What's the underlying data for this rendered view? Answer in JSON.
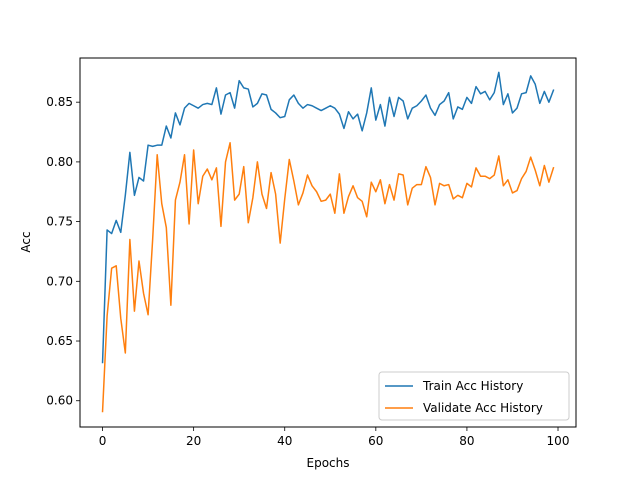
{
  "chart_data": {
    "type": "line",
    "title": "",
    "xlabel": "Epochs",
    "ylabel": "Acc",
    "xlim": [
      -4.95,
      103.95
    ],
    "ylim": [
      0.578,
      0.887
    ],
    "xticks": [
      0,
      20,
      40,
      60,
      80,
      100
    ],
    "yticks": [
      0.6,
      0.65,
      0.7,
      0.75,
      0.8,
      0.85
    ],
    "xtick_labels": [
      "0",
      "20",
      "40",
      "60",
      "80",
      "100"
    ],
    "ytick_labels": [
      "0.60",
      "0.65",
      "0.70",
      "0.75",
      "0.80",
      "0.85"
    ],
    "grid": false,
    "legend_position": "lower-right",
    "x": [
      0,
      1,
      2,
      3,
      4,
      5,
      6,
      7,
      8,
      9,
      10,
      11,
      12,
      13,
      14,
      15,
      16,
      17,
      18,
      19,
      20,
      21,
      22,
      23,
      24,
      25,
      26,
      27,
      28,
      29,
      30,
      31,
      32,
      33,
      34,
      35,
      36,
      37,
      38,
      39,
      40,
      41,
      42,
      43,
      44,
      45,
      46,
      47,
      48,
      49,
      50,
      51,
      52,
      53,
      54,
      55,
      56,
      57,
      58,
      59,
      60,
      61,
      62,
      63,
      64,
      65,
      66,
      67,
      68,
      69,
      70,
      71,
      72,
      73,
      74,
      75,
      76,
      77,
      78,
      79,
      80,
      81,
      82,
      83,
      84,
      85,
      86,
      87,
      88,
      89,
      90,
      91,
      92,
      93,
      94,
      95,
      96,
      97,
      98,
      99
    ],
    "series": [
      {
        "name": "Train Acc History",
        "color": "#1f77b4",
        "values": [
          0.632,
          0.743,
          0.74,
          0.751,
          0.741,
          0.772,
          0.808,
          0.772,
          0.787,
          0.784,
          0.814,
          0.813,
          0.814,
          0.814,
          0.83,
          0.82,
          0.841,
          0.831,
          0.845,
          0.849,
          0.847,
          0.845,
          0.848,
          0.849,
          0.848,
          0.862,
          0.84,
          0.856,
          0.858,
          0.845,
          0.868,
          0.862,
          0.861,
          0.846,
          0.849,
          0.857,
          0.856,
          0.844,
          0.841,
          0.837,
          0.838,
          0.852,
          0.856,
          0.849,
          0.845,
          0.848,
          0.847,
          0.845,
          0.843,
          0.845,
          0.847,
          0.845,
          0.84,
          0.828,
          0.842,
          0.836,
          0.84,
          0.826,
          0.841,
          0.862,
          0.835,
          0.848,
          0.83,
          0.854,
          0.838,
          0.854,
          0.851,
          0.836,
          0.845,
          0.847,
          0.851,
          0.856,
          0.845,
          0.839,
          0.848,
          0.851,
          0.858,
          0.836,
          0.846,
          0.844,
          0.854,
          0.849,
          0.863,
          0.857,
          0.859,
          0.852,
          0.858,
          0.875,
          0.848,
          0.857,
          0.841,
          0.845,
          0.857,
          0.858,
          0.872,
          0.865,
          0.849,
          0.859,
          0.85,
          0.86
        ]
      },
      {
        "name": "Validate Acc History",
        "color": "#ff7f0e",
        "values": [
          0.591,
          0.671,
          0.711,
          0.713,
          0.669,
          0.64,
          0.735,
          0.675,
          0.717,
          0.69,
          0.672,
          0.735,
          0.806,
          0.765,
          0.745,
          0.68,
          0.768,
          0.783,
          0.806,
          0.748,
          0.81,
          0.765,
          0.788,
          0.794,
          0.785,
          0.795,
          0.746,
          0.8,
          0.816,
          0.768,
          0.773,
          0.796,
          0.749,
          0.77,
          0.8,
          0.773,
          0.761,
          0.791,
          0.773,
          0.732,
          0.769,
          0.802,
          0.784,
          0.764,
          0.774,
          0.789,
          0.78,
          0.775,
          0.767,
          0.768,
          0.773,
          0.757,
          0.79,
          0.757,
          0.771,
          0.78,
          0.77,
          0.767,
          0.754,
          0.783,
          0.775,
          0.785,
          0.765,
          0.781,
          0.768,
          0.79,
          0.789,
          0.764,
          0.778,
          0.781,
          0.781,
          0.796,
          0.787,
          0.764,
          0.782,
          0.78,
          0.781,
          0.769,
          0.772,
          0.77,
          0.782,
          0.779,
          0.795,
          0.788,
          0.788,
          0.786,
          0.789,
          0.805,
          0.78,
          0.785,
          0.774,
          0.776,
          0.786,
          0.792,
          0.804,
          0.793,
          0.78,
          0.797,
          0.783,
          0.795
        ]
      }
    ]
  }
}
